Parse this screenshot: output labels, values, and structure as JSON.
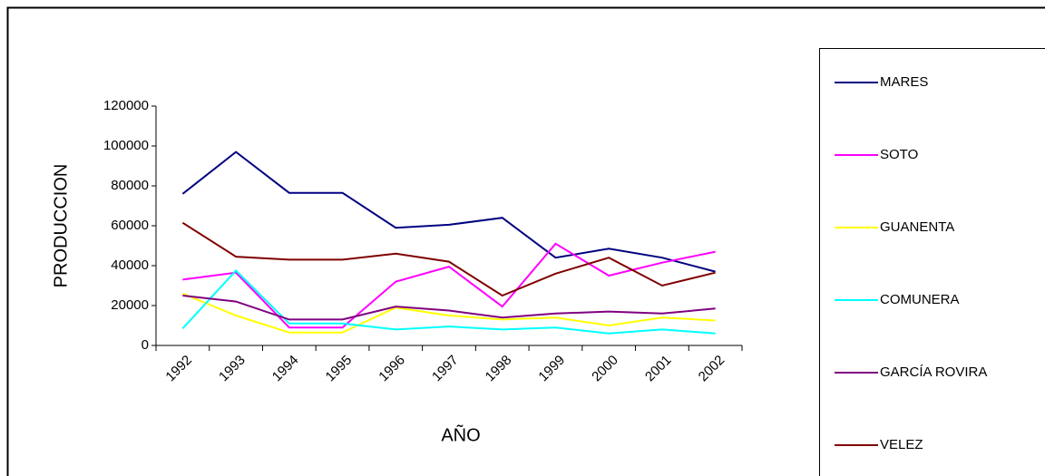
{
  "chart_data": {
    "type": "line",
    "x_label": "AÑO",
    "y_label": "PRODUCCION",
    "categories": [
      "1992",
      "1993",
      "1994",
      "1995",
      "1996",
      "1997",
      "1998",
      "1999",
      "2000",
      "2001",
      "2002"
    ],
    "series": [
      {
        "name": "MARES",
        "color": "#000080",
        "values": [
          76000,
          97000,
          76500,
          76500,
          59000,
          60500,
          64000,
          44000,
          48500,
          44000,
          37000
        ]
      },
      {
        "name": "SOTO",
        "color": "#ff00ff",
        "values": [
          33000,
          36500,
          9000,
          9000,
          32000,
          39500,
          19500,
          51000,
          35000,
          41500,
          47000
        ]
      },
      {
        "name": "GUANENTA",
        "color": "#ffff00",
        "values": [
          26000,
          15000,
          6500,
          6500,
          19000,
          15000,
          13000,
          14000,
          10000,
          14000,
          12500
        ]
      },
      {
        "name": "COMUNERA",
        "color": "#00ffff",
        "values": [
          8500,
          37500,
          11000,
          11000,
          8000,
          9500,
          8000,
          9000,
          6000,
          8000,
          6000
        ]
      },
      {
        "name": "GARCÍA ROVIRA",
        "color": "#800080",
        "values": [
          25000,
          22000,
          13000,
          13000,
          19500,
          17500,
          14000,
          16000,
          17000,
          16000,
          18500
        ]
      },
      {
        "name": "VELEZ",
        "color": "#800000",
        "values": [
          61500,
          44500,
          43000,
          43000,
          46000,
          42000,
          25000,
          36000,
          44000,
          30000,
          36500
        ]
      }
    ],
    "ylim": [
      0,
      120000
    ],
    "yticks": [
      0,
      20000,
      40000,
      60000,
      80000,
      100000,
      120000
    ],
    "grid": false,
    "legend": "right"
  }
}
